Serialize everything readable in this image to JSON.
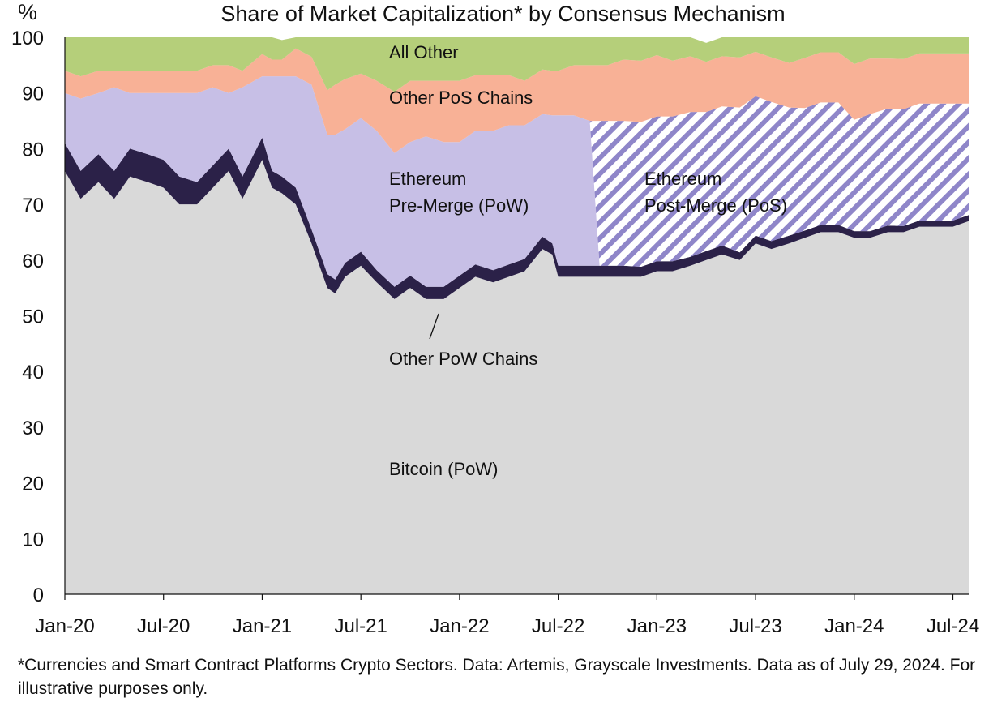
{
  "chart_data": {
    "type": "area",
    "stacked": true,
    "title": "Share of Market Capitalization* by Consensus Mechanism",
    "ylabel": "%",
    "ylim": [
      0,
      100
    ],
    "yticks": [
      0,
      10,
      20,
      30,
      40,
      50,
      60,
      70,
      80,
      90,
      100
    ],
    "x_range": [
      2020.0,
      2024.58
    ],
    "merge_date": 2022.71,
    "xticks": [
      {
        "label": "Jan-20",
        "x": 2020.0
      },
      {
        "label": "Jul-20",
        "x": 2020.5
      },
      {
        "label": "Jan-21",
        "x": 2021.0
      },
      {
        "label": "Jul-21",
        "x": 2021.5
      },
      {
        "label": "Jan-22",
        "x": 2022.0
      },
      {
        "label": "Jul-22",
        "x": 2022.5
      },
      {
        "label": "Jan-23",
        "x": 2023.0
      },
      {
        "label": "Jul-23",
        "x": 2023.5
      },
      {
        "label": "Jan-24",
        "x": 2024.0
      },
      {
        "label": "Jul-24",
        "x": 2024.5
      }
    ],
    "boundaries_x": [
      2020.0,
      2020.08,
      2020.17,
      2020.25,
      2020.33,
      2020.42,
      2020.5,
      2020.58,
      2020.67,
      2020.75,
      2020.83,
      2020.9,
      2021.0,
      2021.05,
      2021.1,
      2021.17,
      2021.25,
      2021.33,
      2021.37,
      2021.42,
      2021.5,
      2021.58,
      2021.67,
      2021.75,
      2021.83,
      2021.92,
      2022.0,
      2022.08,
      2022.17,
      2022.25,
      2022.33,
      2022.42,
      2022.47,
      2022.5,
      2022.58,
      2022.66,
      2022.71,
      2022.75,
      2022.83,
      2022.92,
      2023.0,
      2023.08,
      2023.17,
      2023.25,
      2023.33,
      2023.42,
      2023.5,
      2023.58,
      2023.67,
      2023.75,
      2023.83,
      2023.92,
      2024.0,
      2024.08,
      2024.17,
      2024.25,
      2024.33,
      2024.42,
      2024.5,
      2024.58
    ],
    "series": [
      {
        "name": "Bitcoin (PoW)",
        "color": "#d9d9d9",
        "values": [
          76,
          71,
          74,
          71,
          75,
          74,
          73,
          70,
          70,
          73,
          76,
          71,
          78,
          73,
          72,
          70,
          63,
          55,
          54,
          57,
          59,
          56,
          53,
          55,
          53,
          53,
          55,
          57,
          56,
          57,
          58,
          62,
          61,
          57,
          57,
          57,
          57,
          57,
          57,
          57,
          58,
          58,
          59,
          60,
          61,
          60,
          63,
          62,
          63,
          64,
          65,
          65,
          64,
          64,
          65,
          65,
          66,
          66,
          66,
          67
        ]
      },
      {
        "name": "Other PoW Chains",
        "color": "#2b2148",
        "values": [
          5,
          5,
          5,
          5,
          5,
          5,
          5,
          5,
          4,
          4,
          4,
          4,
          4,
          3,
          3,
          3,
          2.5,
          2.5,
          2.5,
          2.5,
          2.5,
          2.2,
          2.2,
          2.2,
          2.2,
          2.2,
          2.2,
          2.2,
          2.2,
          2.2,
          2.2,
          2.2,
          2,
          2,
          2,
          2,
          2,
          2,
          2,
          1.8,
          1.8,
          1.8,
          1.6,
          1.6,
          1.6,
          1.4,
          1.4,
          1.4,
          1.4,
          1.3,
          1.3,
          1.3,
          1.2,
          1.2,
          1.2,
          1.1,
          1.1,
          1.1,
          1.1,
          1.1
        ]
      },
      {
        "name": "Ethereum Pre-Merge (PoW)",
        "color": "#c7bfe6",
        "values": [
          9,
          13,
          11,
          15,
          10,
          11,
          12,
          15,
          16,
          14,
          10,
          16,
          11,
          17,
          18,
          20,
          26,
          25,
          26,
          24,
          24,
          25,
          24,
          24,
          27,
          26,
          24,
          24,
          25,
          25,
          24,
          22,
          23,
          27,
          27,
          26,
          0,
          0,
          0,
          0,
          0,
          0,
          0,
          0,
          0,
          0,
          0,
          0,
          0,
          0,
          0,
          0,
          0,
          0,
          0,
          0,
          0,
          0,
          0,
          0
        ]
      },
      {
        "name": "Ethereum Post-Merge (PoS)",
        "color": "#8f86c9",
        "pattern": "diagonal-stripes",
        "values": [
          0,
          0,
          0,
          0,
          0,
          0,
          0,
          0,
          0,
          0,
          0,
          0,
          0,
          0,
          0,
          0,
          0,
          0,
          0,
          0,
          0,
          0,
          0,
          0,
          0,
          0,
          0,
          0,
          0,
          0,
          0,
          0,
          0,
          0,
          0,
          0,
          26,
          26,
          26,
          26,
          26,
          26,
          26,
          25,
          25,
          26,
          25,
          25,
          23,
          22,
          22,
          22,
          20,
          21,
          21,
          21,
          21,
          21,
          21,
          20
        ]
      },
      {
        "name": "Other PoS Chains",
        "color": "#f8b196",
        "values": [
          4,
          4,
          4,
          3,
          4,
          4,
          4,
          4,
          4,
          4,
          5,
          3,
          4,
          3,
          3,
          5,
          5,
          8,
          9,
          9,
          8,
          9,
          11,
          11,
          10,
          11,
          11,
          10,
          10,
          9,
          8,
          8,
          8,
          8,
          9,
          10,
          10,
          10,
          11,
          11,
          11,
          10,
          10,
          9,
          9,
          9,
          8,
          8,
          8,
          9,
          9,
          9,
          10,
          10,
          9,
          9,
          9,
          9,
          9,
          9
        ]
      },
      {
        "name": "All Other",
        "color": "#b5cf7a",
        "values": [
          6,
          7,
          6,
          6,
          6,
          6,
          6,
          6,
          6,
          5,
          5,
          6,
          3,
          4,
          3.5,
          2,
          3.5,
          9.5,
          8.5,
          7.5,
          6.5,
          7.8,
          9.8,
          7.8,
          7.8,
          7.8,
          7.8,
          6.8,
          6.8,
          6.8,
          7.8,
          5.8,
          6,
          6,
          5,
          5,
          5,
          5,
          4,
          4.2,
          3.2,
          4.2,
          3.4,
          3.4,
          3.4,
          3.6,
          2.6,
          3.6,
          4.6,
          3.7,
          2.7,
          2.7,
          4.8,
          3.8,
          3.8,
          3.9,
          2.9,
          2.9,
          2.9,
          2.9
        ]
      }
    ],
    "annotations": [
      {
        "lines": [
          "All Other"
        ]
      },
      {
        "lines": [
          "Other PoS Chains"
        ]
      },
      {
        "lines": [
          "Ethereum",
          "Pre-Merge (PoW)"
        ]
      },
      {
        "lines": [
          "Ethereum",
          "Post-Merge (PoS)"
        ]
      },
      {
        "lines": [
          "Other PoW Chains"
        ]
      },
      {
        "lines": [
          "Bitcoin (PoW)"
        ]
      }
    ]
  },
  "footnote": "*Currencies and Smart Contract Platforms Crypto Sectors. Data: Artemis, Grayscale Investments. Data as of July 29, 2024. For illustrative purposes only."
}
